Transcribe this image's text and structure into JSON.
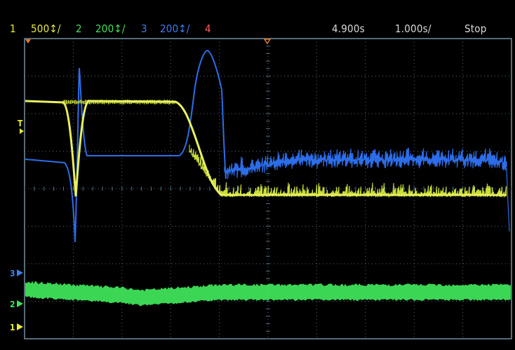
{
  "status_bar": {
    "ch1": {
      "number": "1",
      "scale": "500↕/",
      "color": "#e8ea3a"
    },
    "ch2": {
      "number": "2",
      "scale": "200↕/",
      "color": "#3fe15a"
    },
    "ch3": {
      "number": "3",
      "scale": "200↕/",
      "color": "#3d7cf0"
    },
    "ch4": {
      "number": "4",
      "color": "#ff5a5a"
    },
    "time_offset": "4.900s",
    "time_scale": "1.000s/",
    "run_state": "Stop"
  },
  "markers": {
    "trigger": "T",
    "ch3": "3",
    "ch2": "2",
    "ch1": "1"
  },
  "colors": {
    "grid": "#6c8fa6",
    "border": "#8fb3c8",
    "ch1": "#e0ee4a",
    "ch2": "#3fe15a",
    "ch3": "#2d6de8",
    "trigger": "#e07a30"
  }
}
